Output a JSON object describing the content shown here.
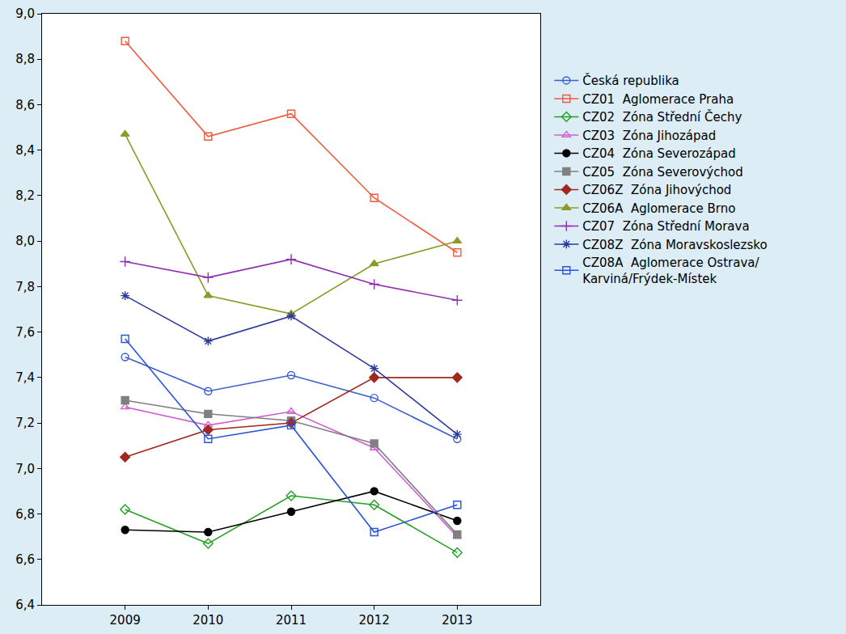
{
  "chart_data": {
    "type": "line",
    "x": [
      2009,
      2010,
      2011,
      2012,
      2013
    ],
    "xlim": [
      2008,
      2014
    ],
    "xticks": [
      2009,
      2010,
      2011,
      2012,
      2013
    ],
    "ylim": [
      6.4,
      9.0
    ],
    "yticks": [
      {
        "value": 6.4,
        "label": "6,4"
      },
      {
        "value": 6.6,
        "label": "6,6"
      },
      {
        "value": 6.8,
        "label": "6,8"
      },
      {
        "value": 7.0,
        "label": "7,0"
      },
      {
        "value": 7.2,
        "label": "7,2"
      },
      {
        "value": 7.4,
        "label": "7,4"
      },
      {
        "value": 7.6,
        "label": "7,6"
      },
      {
        "value": 7.8,
        "label": "7,8"
      },
      {
        "value": 8.0,
        "label": "8,0"
      },
      {
        "value": 8.2,
        "label": "8,2"
      },
      {
        "value": 8.4,
        "label": "8,4"
      },
      {
        "value": 8.6,
        "label": "8,6"
      },
      {
        "value": 8.8,
        "label": "8,8"
      },
      {
        "value": 9.0,
        "label": "9,0"
      }
    ],
    "grid": false,
    "legend": "right",
    "series": [
      {
        "name": "Česká republika",
        "color": "#3a5fcd",
        "marker": "circle-open",
        "values": [
          7.49,
          7.34,
          7.41,
          7.31,
          7.13
        ]
      },
      {
        "name": "CZ01  Aglomerace Praha",
        "color": "#f05a3c",
        "marker": "square-open",
        "values": [
          8.88,
          8.46,
          8.56,
          8.19,
          7.95
        ]
      },
      {
        "name": "CZ02  Zóna Střední Čechy",
        "color": "#22a022",
        "marker": "diamond-open",
        "values": [
          6.82,
          6.67,
          6.88,
          6.84,
          6.63
        ]
      },
      {
        "name": "CZ03  Zóna Jihozápad",
        "color": "#d060d0",
        "marker": "triangle-up-open",
        "values": [
          7.27,
          7.19,
          7.25,
          7.09,
          6.7
        ]
      },
      {
        "name": "CZ04  Zóna Severozápad",
        "color": "#000000",
        "marker": "circle",
        "values": [
          6.73,
          6.72,
          6.81,
          6.9,
          6.77
        ]
      },
      {
        "name": "CZ05  Zóna Severovýchod",
        "color": "#808080",
        "marker": "square",
        "values": [
          7.3,
          7.24,
          7.21,
          7.11,
          6.71
        ]
      },
      {
        "name": "CZ06Z  Zóna Jihovýchod",
        "color": "#a0281e",
        "marker": "diamond",
        "values": [
          7.05,
          7.17,
          7.2,
          7.4,
          7.4
        ]
      },
      {
        "name": "CZ06A  Aglomerace Brno",
        "color": "#8c9a28",
        "marker": "triangle-up",
        "values": [
          8.47,
          7.76,
          7.68,
          7.9,
          8.0
        ]
      },
      {
        "name": "CZ07  Zóna Střední Morava",
        "color": "#8e2fb0",
        "marker": "cross-thin-open",
        "values": [
          7.91,
          7.84,
          7.92,
          7.81,
          7.74
        ]
      },
      {
        "name": "CZ08Z  Zóna Moravskoslezsko",
        "color": "#2c3a9c",
        "marker": "asterisk-open",
        "values": [
          7.76,
          7.56,
          7.67,
          7.44,
          7.15
        ]
      },
      {
        "name": "CZ08A  Aglomerace Ostrava/Karviná/Frýdek-Místek",
        "color": "#2a55d8",
        "marker": "square-open",
        "values": [
          7.57,
          7.13,
          7.19,
          6.72,
          6.84
        ]
      }
    ]
  }
}
